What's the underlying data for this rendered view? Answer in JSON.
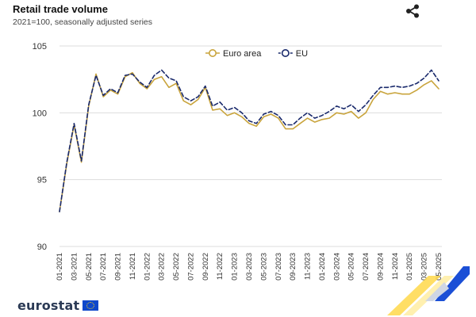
{
  "header": {
    "title": "Retail trade volume",
    "subtitle": "2021=100, seasonally adjusted series"
  },
  "share": {
    "icon": "share-icon"
  },
  "logo": {
    "text": "eurostat",
    "flag_color": "#0e47cb"
  },
  "colors": {
    "euro_area": "#c9a43c",
    "eu": "#1a2a6c",
    "grid": "#dddddd",
    "deco_yellow": "#ffcc33",
    "deco_blue": "#0e47cb"
  },
  "chart_data": {
    "type": "line",
    "title": "Retail trade volume",
    "subtitle": "2021=100, seasonally adjusted series",
    "xlabel": "",
    "ylabel": "",
    "ylim": [
      90,
      105
    ],
    "yticks": [
      90,
      95,
      100,
      105
    ],
    "grid": true,
    "legend_position": "top-center",
    "x": [
      "01-2021",
      "02-2021",
      "03-2021",
      "04-2021",
      "05-2021",
      "06-2021",
      "07-2021",
      "08-2021",
      "09-2021",
      "10-2021",
      "11-2021",
      "12-2021",
      "01-2022",
      "02-2022",
      "03-2022",
      "04-2022",
      "05-2022",
      "06-2022",
      "07-2022",
      "08-2022",
      "09-2022",
      "10-2022",
      "11-2022",
      "12-2022",
      "01-2023",
      "02-2023",
      "03-2023",
      "04-2023",
      "05-2023",
      "06-2023",
      "07-2023",
      "08-2023",
      "09-2023",
      "10-2023",
      "11-2023",
      "12-2023",
      "01-2024",
      "02-2024",
      "03-2024",
      "04-2024",
      "05-2024",
      "06-2024",
      "07-2024",
      "08-2024",
      "09-2024",
      "10-2024",
      "11-2024",
      "12-2024",
      "01-2025",
      "02-2025",
      "03-2025",
      "04-2025",
      "05-2025"
    ],
    "xtick_labels": [
      "01-2021",
      "03-2021",
      "05-2021",
      "07-2021",
      "09-2021",
      "11-2021",
      "01-2022",
      "03-2022",
      "05-2022",
      "07-2022",
      "09-2022",
      "11-2022",
      "01-2023",
      "03-2023",
      "05-2023",
      "07-2023",
      "09-2023",
      "11-2023",
      "01-2024",
      "03-2024",
      "05-2024",
      "07-2024",
      "09-2024",
      "11-2024",
      "01-2025",
      "03-2025",
      "05-2025"
    ],
    "series": [
      {
        "name": "Euro area",
        "style": "solid",
        "values": [
          92.6,
          96.2,
          99.1,
          96.3,
          100.5,
          102.9,
          101.2,
          101.7,
          101.4,
          102.7,
          103.0,
          102.2,
          101.8,
          102.5,
          102.7,
          101.9,
          102.2,
          100.9,
          100.6,
          101.0,
          101.9,
          100.2,
          100.3,
          99.8,
          100.0,
          99.7,
          99.2,
          99.0,
          99.7,
          99.9,
          99.6,
          98.8,
          98.8,
          99.2,
          99.6,
          99.3,
          99.5,
          99.6,
          100.0,
          99.9,
          100.1,
          99.6,
          100.0,
          101.0,
          101.6,
          101.4,
          101.5,
          101.4,
          101.4,
          101.7,
          102.1,
          102.4,
          101.8
        ]
      },
      {
        "name": "EU",
        "style": "dashed",
        "values": [
          92.6,
          96.3,
          99.2,
          96.4,
          100.6,
          102.8,
          101.3,
          101.8,
          101.5,
          102.8,
          102.9,
          102.3,
          101.9,
          102.8,
          103.2,
          102.6,
          102.4,
          101.2,
          100.9,
          101.2,
          102.0,
          100.5,
          100.8,
          100.2,
          100.4,
          100.0,
          99.4,
          99.2,
          99.9,
          100.1,
          99.8,
          99.1,
          99.1,
          99.6,
          100.0,
          99.6,
          99.8,
          100.1,
          100.5,
          100.3,
          100.6,
          100.1,
          100.6,
          101.3,
          101.9,
          101.9,
          102.0,
          101.9,
          102.0,
          102.2,
          102.6,
          103.2,
          102.4
        ]
      }
    ]
  }
}
